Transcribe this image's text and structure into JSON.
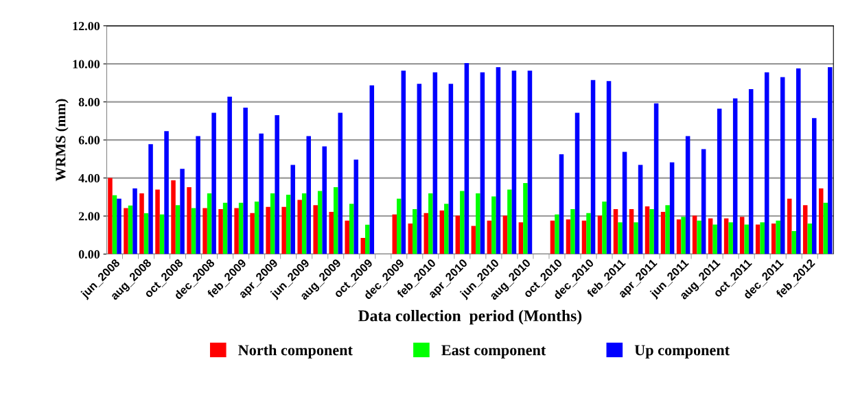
{
  "chart_data": {
    "type": "bar",
    "xlabel": "Data collection  period (Months)",
    "ylabel": "WRMS (mm)",
    "categories": [
      "jun_2008",
      null,
      "aug_2008",
      null,
      "oct_2008",
      null,
      "dec_2008",
      null,
      "feb_2009",
      null,
      "apr_2009",
      null,
      "jun_2009",
      null,
      "aug_2009",
      null,
      "oct_2009",
      null,
      "dec_2009",
      null,
      "feb_2010",
      null,
      "apr_2010",
      null,
      "jun_2010",
      null,
      "aug_2010",
      null,
      "oct_2010",
      null,
      "dec_2010",
      null,
      "feb_2011",
      null,
      "apr_2011",
      null,
      "jun_2011",
      null,
      "aug_2011",
      null,
      "oct_2011",
      null,
      "dec_2011",
      null,
      "feb_2012",
      null
    ],
    "series": [
      {
        "name": "North component",
        "color": "#ff0000",
        "values": [
          4.0,
          2.42,
          3.19,
          3.39,
          3.88,
          3.52,
          2.42,
          2.36,
          2.42,
          2.16,
          2.48,
          2.48,
          2.85,
          2.57,
          2.22,
          1.76,
          0.85,
          null,
          2.08,
          1.61,
          2.16,
          2.29,
          2.02,
          1.48,
          1.76,
          2.02,
          1.67,
          null,
          1.76,
          1.82,
          1.76,
          2.02,
          2.36,
          2.36,
          2.51,
          2.22,
          1.82,
          2.02,
          1.88,
          1.88,
          1.96,
          1.55,
          1.61,
          2.91,
          2.57,
          3.45
        ]
      },
      {
        "name": "East component",
        "color": "#00ff00",
        "values": [
          3.09,
          2.55,
          2.15,
          2.08,
          2.57,
          2.42,
          3.19,
          2.7,
          2.7,
          2.76,
          3.19,
          3.12,
          3.19,
          3.32,
          3.52,
          2.64,
          1.54,
          null,
          2.91,
          2.36,
          3.19,
          2.64,
          3.32,
          3.19,
          3.03,
          3.39,
          3.73,
          null,
          2.08,
          2.36,
          2.16,
          2.76,
          1.67,
          1.67,
          2.36,
          2.57,
          1.96,
          1.76,
          1.55,
          1.67,
          1.55,
          1.67,
          1.76,
          1.21,
          1.61,
          2.7
        ]
      },
      {
        "name": "Up component",
        "color": "#0000ff",
        "values": [
          2.91,
          3.45,
          5.78,
          6.46,
          4.48,
          6.2,
          7.43,
          8.27,
          7.7,
          6.34,
          7.3,
          4.69,
          6.2,
          5.66,
          7.43,
          4.97,
          8.87,
          null,
          9.64,
          8.95,
          9.55,
          8.95,
          10.04,
          9.55,
          9.82,
          9.64,
          9.64,
          null,
          5.25,
          7.43,
          9.15,
          9.09,
          5.37,
          4.69,
          7.92,
          4.82,
          6.2,
          5.52,
          7.64,
          8.18,
          8.67,
          9.55,
          9.3,
          9.76,
          7.15,
          9.82
        ]
      }
    ],
    "ylim": [
      0,
      12
    ],
    "yticks": [
      {
        "value": 0,
        "label": "0.00"
      },
      {
        "value": 2,
        "label": "2.00"
      },
      {
        "value": 4,
        "label": "4.00"
      },
      {
        "value": 6,
        "label": "6.00"
      },
      {
        "value": 8,
        "label": "8.00"
      },
      {
        "value": 10,
        "label": "10.00"
      },
      {
        "value": 12,
        "label": "12.00"
      }
    ],
    "grid": "y",
    "legend": "bottom"
  }
}
